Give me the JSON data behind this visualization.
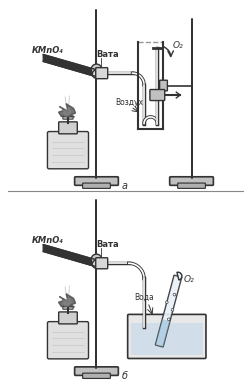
{
  "title_a": "а",
  "title_b": "б",
  "label_kmno4": "КMnO₄",
  "label_vata": "Вата",
  "label_o2": "O₂",
  "label_vozduh": "Воздух",
  "label_voda": "Вода",
  "line_color": "#333333",
  "figsize": [
    2.5,
    3.84
  ],
  "dpi": 100
}
